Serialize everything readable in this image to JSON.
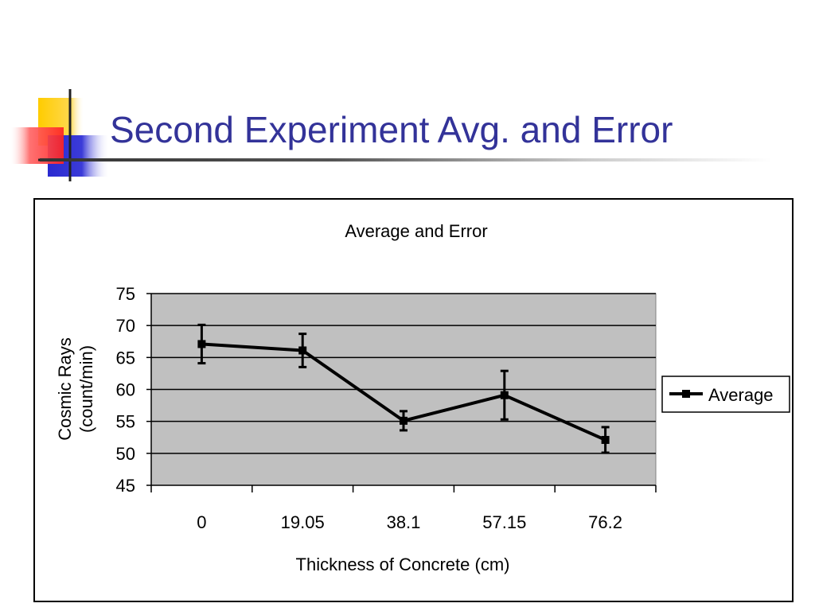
{
  "slide": {
    "title": "Second Experiment Avg. and Error"
  },
  "colors": {
    "title": "#333399",
    "logo_yellow": "#ffcc00",
    "logo_red": "#ff3333",
    "logo_blue": "#3333cc",
    "plot_background": "#c0c0c0",
    "series": "#000000"
  },
  "chart_data": {
    "type": "line",
    "title": "Average and Error",
    "xlabel": "Thickness of Concrete (cm)",
    "ylabel": [
      "Cosmic Rays",
      "(count/min)"
    ],
    "categories": [
      "0",
      "19.05",
      "38.1",
      "57.15",
      "76.2"
    ],
    "ylim": [
      45,
      75
    ],
    "yticks": [
      45,
      50,
      55,
      60,
      65,
      70,
      75
    ],
    "grid": true,
    "legend": "right",
    "series": [
      {
        "name": "Average",
        "values": [
          67.1,
          66.1,
          55.1,
          59.1,
          52.1
        ],
        "error": [
          3.0,
          2.6,
          1.5,
          3.8,
          2.0
        ],
        "marker": "square"
      }
    ]
  }
}
